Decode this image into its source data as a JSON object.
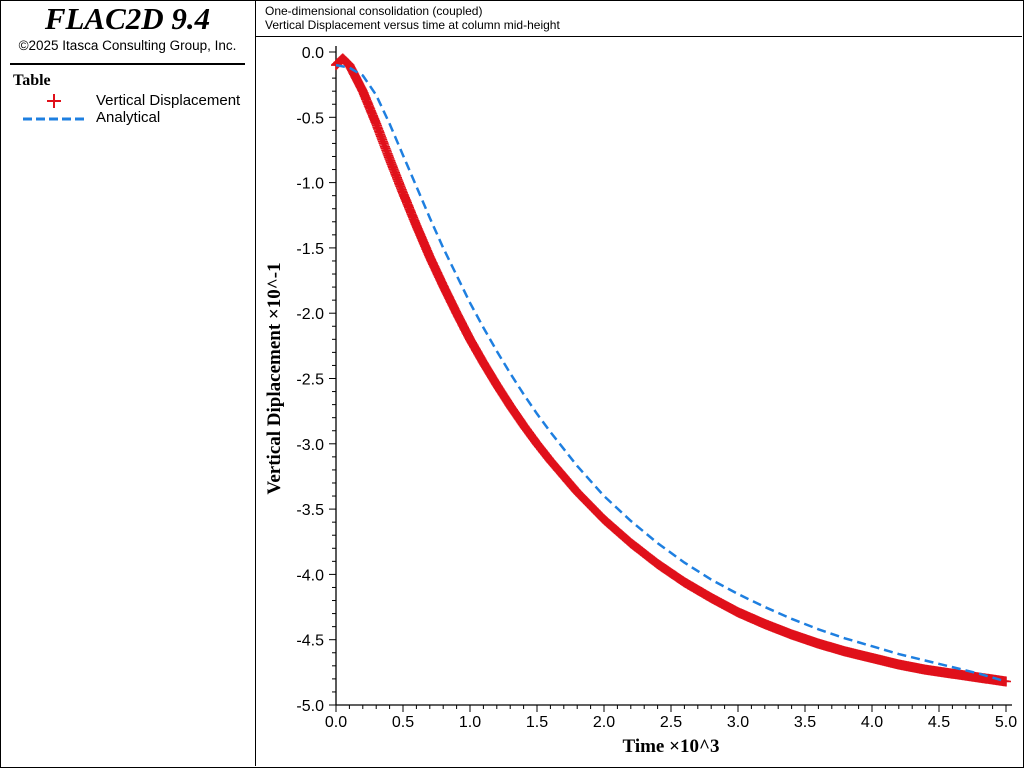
{
  "app": {
    "title": "FLAC2D 9.4",
    "copyright": "©2025 Itasca Consulting Group, Inc."
  },
  "legend": {
    "title": "Table",
    "items": [
      {
        "label": "Vertical Displacement",
        "symbol": "plus-icon",
        "color": "#e0101a"
      },
      {
        "label": "Analytical",
        "symbol": "dashed-line-icon",
        "color": "#1e7fe0"
      }
    ]
  },
  "header": {
    "lines": [
      "One-dimensional consolidation (coupled)",
      "Vertical Displacement versus time at column mid-height"
    ]
  },
  "chart_data": {
    "type": "line",
    "xlabel": "Time ×10^3",
    "ylabel": "Vertical Diplacement ×10^-1",
    "xlim": [
      0,
      5
    ],
    "ylim": [
      -5,
      0
    ],
    "x_ticks": [
      "0.0",
      "0.5",
      "1.0",
      "1.5",
      "2.0",
      "2.5",
      "3.0",
      "3.5",
      "4.0",
      "4.5",
      "5.0"
    ],
    "y_ticks": [
      "0.0",
      "-0.5",
      "-1.0",
      "-1.5",
      "-2.0",
      "-2.5",
      "-3.0",
      "-3.5",
      "-4.0",
      "-4.5",
      "-5.0"
    ],
    "grid": false,
    "series": [
      {
        "name": "Vertical Displacement",
        "style": "plus-markers",
        "color": "#e0101a",
        "x": [
          0,
          0.05,
          0.1,
          0.2,
          0.3,
          0.4,
          0.5,
          0.6,
          0.7,
          0.8,
          0.9,
          1.0,
          1.1,
          1.2,
          1.3,
          1.4,
          1.5,
          1.6,
          1.8,
          2.0,
          2.2,
          2.4,
          2.6,
          2.8,
          3.0,
          3.2,
          3.4,
          3.6,
          3.8,
          4.0,
          4.2,
          4.4,
          4.6,
          4.8,
          5.0
        ],
        "y": [
          -0.1,
          -0.05,
          -0.1,
          -0.3,
          -0.55,
          -0.82,
          -1.08,
          -1.33,
          -1.57,
          -1.79,
          -2.0,
          -2.2,
          -2.38,
          -2.55,
          -2.71,
          -2.86,
          -3.0,
          -3.13,
          -3.37,
          -3.58,
          -3.76,
          -3.92,
          -4.06,
          -4.18,
          -4.29,
          -4.38,
          -4.46,
          -4.53,
          -4.59,
          -4.64,
          -4.69,
          -4.73,
          -4.76,
          -4.79,
          -4.82
        ]
      },
      {
        "name": "Analytical",
        "style": "dashed",
        "color": "#1e7fe0",
        "x": [
          0,
          0.1,
          0.2,
          0.3,
          0.4,
          0.5,
          0.6,
          0.7,
          0.8,
          0.9,
          1.0,
          1.1,
          1.2,
          1.3,
          1.4,
          1.5,
          1.6,
          1.8,
          2.0,
          2.2,
          2.4,
          2.6,
          2.8,
          3.0,
          3.2,
          3.4,
          3.6,
          3.8,
          4.0,
          4.2,
          4.4,
          4.6,
          4.8,
          5.0
        ],
        "y": [
          -0.1,
          -0.12,
          -0.18,
          -0.33,
          -0.55,
          -0.79,
          -1.03,
          -1.27,
          -1.5,
          -1.71,
          -1.92,
          -2.11,
          -2.29,
          -2.46,
          -2.62,
          -2.77,
          -2.91,
          -3.17,
          -3.4,
          -3.59,
          -3.76,
          -3.91,
          -4.04,
          -4.15,
          -4.25,
          -4.34,
          -4.42,
          -4.49,
          -4.55,
          -4.61,
          -4.66,
          -4.71,
          -4.76,
          -4.82
        ]
      }
    ]
  }
}
